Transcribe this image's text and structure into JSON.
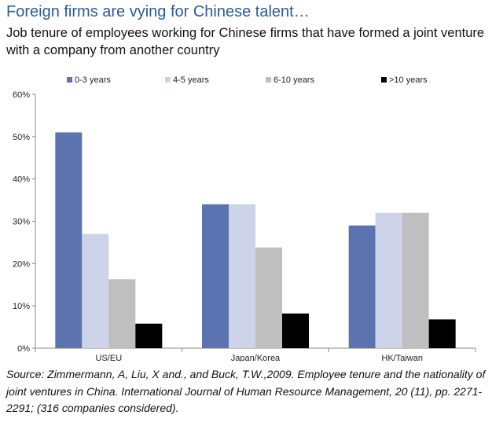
{
  "title": "Foreign firms are vying for Chinese talent…",
  "subtitle": "Job tenure of employees working for Chinese firms that have formed a joint venture with a company from another country",
  "source": "Source: Zimmermann, A, Liu, X and., and Buck, T.W.,2009. Employee tenure and the nationality of joint ventures in China. International Journal of Human Resource Management, 20 (11), pp. 2271-2291; (316  companies considered).",
  "chart_data": {
    "type": "bar",
    "categories": [
      "US/EU",
      "Japan/Korea",
      "HK/Taiwan"
    ],
    "series": [
      {
        "name": "0-3 years",
        "color": "#5b74b0",
        "values": [
          51,
          34,
          29
        ]
      },
      {
        "name": "4-5 years",
        "color": "#cdd4ea",
        "values": [
          27,
          34,
          32
        ]
      },
      {
        "name": "6-10 years",
        "color": "#bfbfbf",
        "values": [
          16.3,
          23.8,
          32
        ]
      },
      {
        "name": ">10 years",
        "color": "#000000",
        "values": [
          5.8,
          8.2,
          6.8
        ]
      }
    ],
    "ylim": [
      0,
      60
    ],
    "yticks": [
      0,
      10,
      20,
      30,
      40,
      50,
      60
    ],
    "ytick_labels": [
      "0%",
      "10%",
      "20%",
      "30%",
      "40%",
      "50%",
      "60%"
    ],
    "grid": false,
    "legend": "top"
  }
}
